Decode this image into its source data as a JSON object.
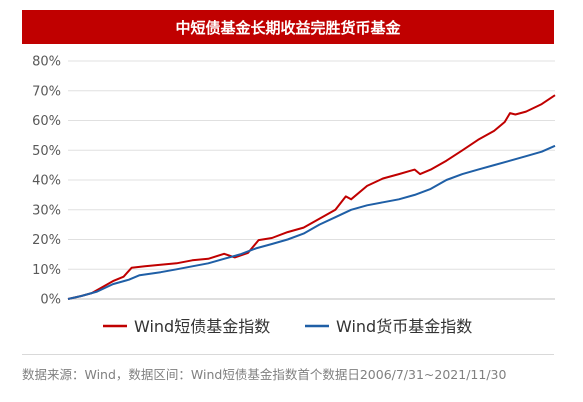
{
  "chart_data": {
    "type": "line",
    "title": "中短债基金长期收益完胜货币基金",
    "x_range": [
      "2006/7/31",
      "2021/11/30"
    ],
    "ylim": [
      0,
      80
    ],
    "y_ticks": [
      "0%",
      "10%",
      "20%",
      "30%",
      "40%",
      "50%",
      "60%",
      "70%",
      "80%"
    ],
    "grid": true,
    "legend_position": "bottom",
    "series": [
      {
        "name": "Wind短债基金指数",
        "color": "#c00000",
        "points": [
          [
            "2006-07-31",
            0
          ],
          [
            "2006-12-31",
            1
          ],
          [
            "2007-04-30",
            2
          ],
          [
            "2007-08-31",
            4
          ],
          [
            "2007-12-31",
            6
          ],
          [
            "2008-04-30",
            7.5
          ],
          [
            "2008-07-31",
            10.5
          ],
          [
            "2008-12-31",
            11
          ],
          [
            "2009-06-30",
            11.5
          ],
          [
            "2009-12-31",
            12
          ],
          [
            "2010-06-30",
            13
          ],
          [
            "2010-12-31",
            13.5
          ],
          [
            "2011-06-30",
            15.2
          ],
          [
            "2011-10-31",
            14
          ],
          [
            "2012-03-31",
            15.5
          ],
          [
            "2012-07-31",
            19.8
          ],
          [
            "2012-12-31",
            20.5
          ],
          [
            "2013-06-30",
            22.5
          ],
          [
            "2013-12-31",
            24
          ],
          [
            "2014-06-30",
            27
          ],
          [
            "2014-12-31",
            30
          ],
          [
            "2015-04-30",
            34.5
          ],
          [
            "2015-06-30",
            33.5
          ],
          [
            "2015-12-31",
            38
          ],
          [
            "2016-06-30",
            40.5
          ],
          [
            "2016-12-31",
            42
          ],
          [
            "2017-04-30",
            43
          ],
          [
            "2017-06-30",
            43.5
          ],
          [
            "2017-08-31",
            42
          ],
          [
            "2017-12-31",
            43.5
          ],
          [
            "2018-06-30",
            46.5
          ],
          [
            "2018-12-31",
            50
          ],
          [
            "2019-06-30",
            53.5
          ],
          [
            "2019-12-31",
            56.5
          ],
          [
            "2020-04-30",
            59.5
          ],
          [
            "2020-06-30",
            62.5
          ],
          [
            "2020-08-31",
            62
          ],
          [
            "2020-12-31",
            63
          ],
          [
            "2021-06-30",
            65.5
          ],
          [
            "2021-11-30",
            68.5
          ]
        ]
      },
      {
        "name": "Wind货币基金指数",
        "color": "#1f5fa6",
        "points": [
          [
            "2006-07-31",
            0
          ],
          [
            "2006-12-31",
            1
          ],
          [
            "2007-06-30",
            2.5
          ],
          [
            "2007-12-31",
            5
          ],
          [
            "2008-06-30",
            6.5
          ],
          [
            "2008-10-31",
            8
          ],
          [
            "2009-06-30",
            9
          ],
          [
            "2009-12-31",
            10
          ],
          [
            "2010-06-30",
            11
          ],
          [
            "2010-12-31",
            12
          ],
          [
            "2011-06-30",
            13.5
          ],
          [
            "2011-12-31",
            15
          ],
          [
            "2012-06-30",
            17
          ],
          [
            "2012-12-31",
            18.5
          ],
          [
            "2013-06-30",
            20
          ],
          [
            "2013-12-31",
            22
          ],
          [
            "2014-06-30",
            25
          ],
          [
            "2014-12-31",
            27.5
          ],
          [
            "2015-06-30",
            30
          ],
          [
            "2015-12-31",
            31.5
          ],
          [
            "2016-06-30",
            32.5
          ],
          [
            "2016-12-31",
            33.5
          ],
          [
            "2017-06-30",
            35
          ],
          [
            "2017-12-31",
            37
          ],
          [
            "2018-06-30",
            40
          ],
          [
            "2018-12-31",
            42
          ],
          [
            "2019-06-30",
            43.5
          ],
          [
            "2019-12-31",
            45
          ],
          [
            "2020-06-30",
            46.5
          ],
          [
            "2020-12-31",
            48
          ],
          [
            "2021-06-30",
            49.5
          ],
          [
            "2021-11-30",
            51.5
          ]
        ]
      }
    ]
  },
  "source_note": "数据来源：Wind，数据区间：Wind短债基金指数首个数据日2006/7/31~2021/11/30"
}
